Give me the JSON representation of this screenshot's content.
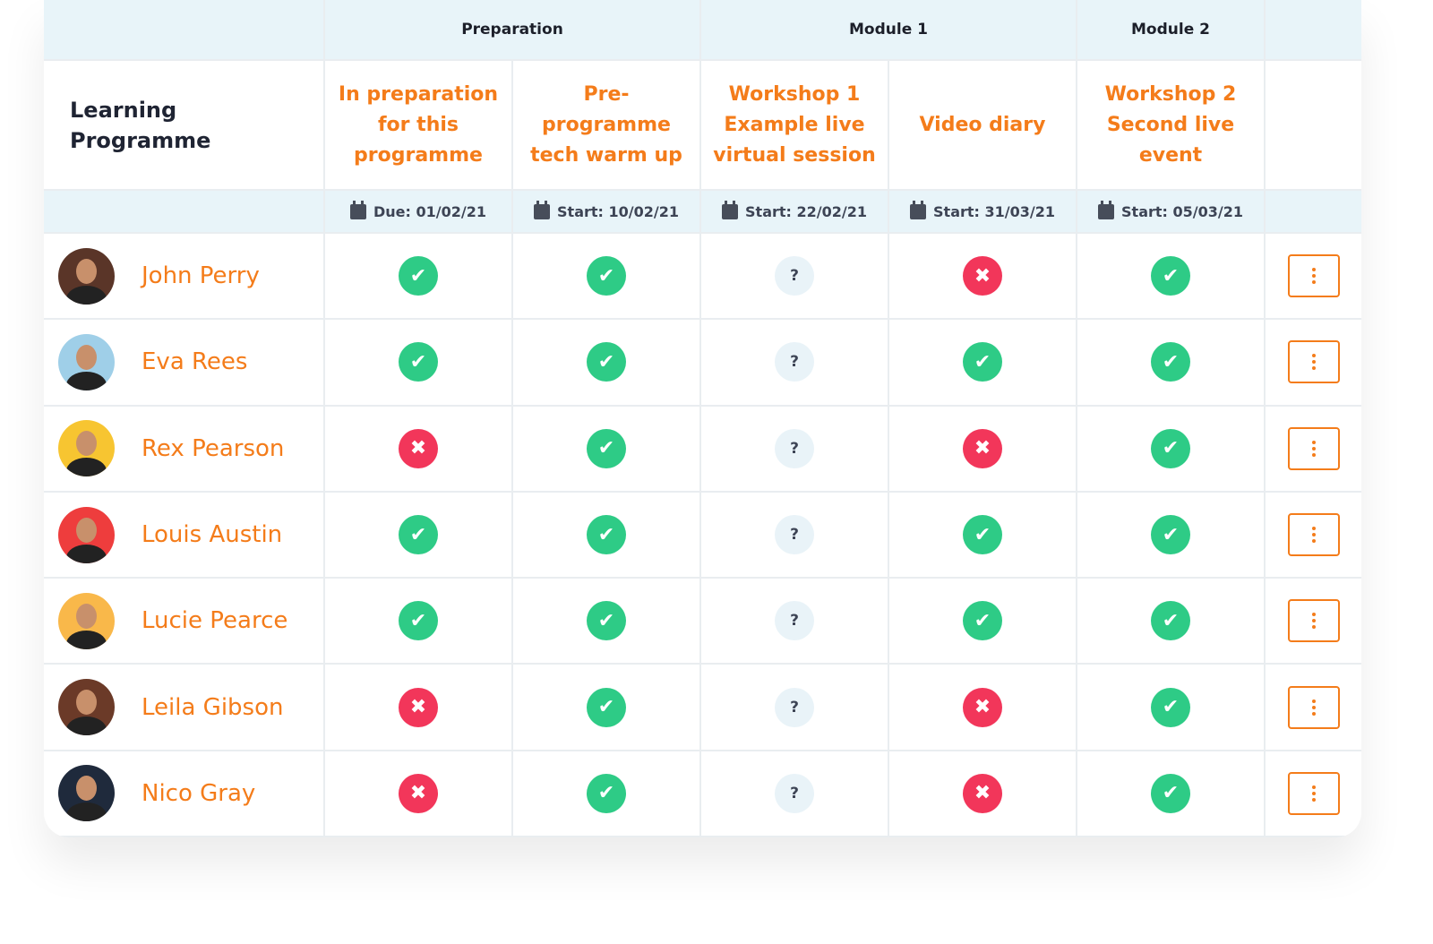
{
  "groups": [
    "Preparation",
    "Module 1",
    "Module 2"
  ],
  "title": "Learning Programme",
  "columns": [
    {
      "title": "In preparation for this programme",
      "date": "Due: 01/02/21"
    },
    {
      "title": "Pre-programme tech warm up",
      "date": "Start: 10/02/21"
    },
    {
      "title": "Workshop 1 Example live virtual session",
      "date": "Start: 22/02/21"
    },
    {
      "title": "Video diary",
      "date": "Start: 31/03/21"
    },
    {
      "title": "Workshop 2 Second live event",
      "date": "Start: 05/03/21"
    }
  ],
  "colors": {
    "accent": "#f47c1a",
    "complete": "#2ecb86",
    "incomplete": "#f2365a",
    "unknown": "#e9f3f8",
    "header_bg": "#e8f4f9"
  },
  "status_glyphs": {
    "check": "✔",
    "cross": "✖",
    "unknown": "?"
  },
  "rows": [
    {
      "name": "John Perry",
      "avatar_bg": "#5a3528",
      "status": [
        "check",
        "check",
        "unknown",
        "cross",
        "check"
      ]
    },
    {
      "name": "Eva Rees",
      "avatar_bg": "#9fcfe8",
      "status": [
        "check",
        "check",
        "unknown",
        "check",
        "check"
      ]
    },
    {
      "name": "Rex Pearson",
      "avatar_bg": "#f7c531",
      "status": [
        "cross",
        "check",
        "unknown",
        "cross",
        "check"
      ]
    },
    {
      "name": "Louis Austin",
      "avatar_bg": "#ee3d3d",
      "status": [
        "check",
        "check",
        "unknown",
        "check",
        "check"
      ]
    },
    {
      "name": "Lucie Pearce",
      "avatar_bg": "#f9b84a",
      "status": [
        "check",
        "check",
        "unknown",
        "check",
        "check"
      ]
    },
    {
      "name": "Leila Gibson",
      "avatar_bg": "#6b3a28",
      "status": [
        "cross",
        "check",
        "unknown",
        "cross",
        "check"
      ]
    },
    {
      "name": "Nico Gray",
      "avatar_bg": "#1f2a3c",
      "status": [
        "cross",
        "check",
        "unknown",
        "cross",
        "check"
      ]
    }
  ]
}
